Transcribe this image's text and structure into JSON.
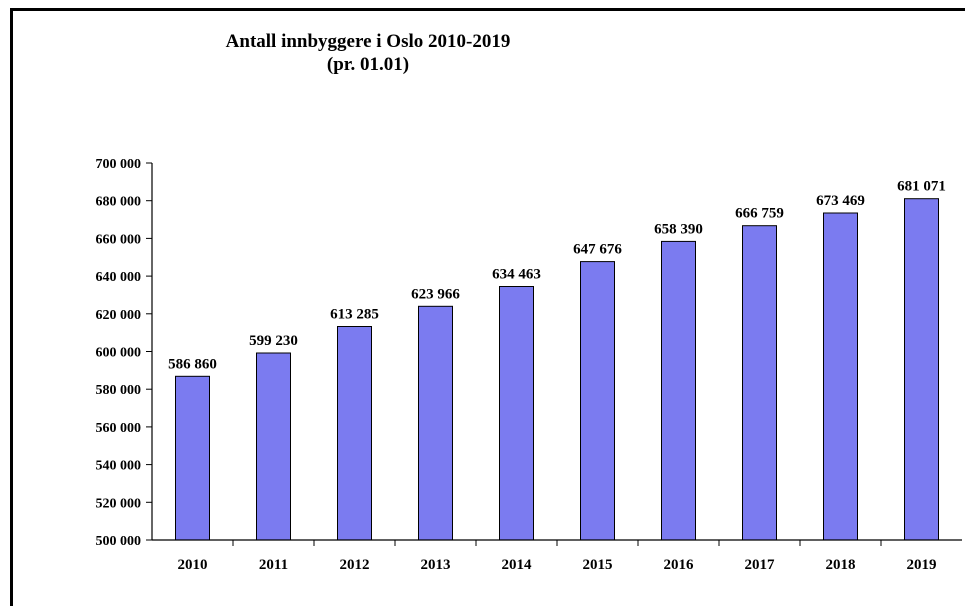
{
  "chart_data": {
    "type": "bar",
    "title": "Antall innbyggere  i Oslo 2010-2019",
    "subtitle": "(pr. 01.01)",
    "categories": [
      "2010",
      "2011",
      "2012",
      "2013",
      "2014",
      "2015",
      "2016",
      "2017",
      "2018",
      "2019"
    ],
    "values": [
      586860,
      599230,
      613285,
      623966,
      634463,
      647676,
      658390,
      666759,
      673469,
      681071
    ],
    "data_labels": [
      "586 860",
      "599 230",
      "613 285",
      "623 966",
      "634 463",
      "647 676",
      "658 390",
      "666 759",
      "673 469",
      "681 071"
    ],
    "ylim": [
      500000,
      700000
    ],
    "yticks": [
      500000,
      520000,
      540000,
      560000,
      580000,
      600000,
      620000,
      640000,
      660000,
      680000,
      700000
    ],
    "ytick_labels": [
      "500 000",
      "520 000",
      "540 000",
      "560 000",
      "580 000",
      "600 000",
      "620 000",
      "640 000",
      "660 000",
      "680 000",
      "700 000"
    ],
    "xlabel": "",
    "ylabel": "",
    "grid": false,
    "legend": "none",
    "bar_color": "#7b7bf0",
    "bar_edge_color": "#000000"
  }
}
